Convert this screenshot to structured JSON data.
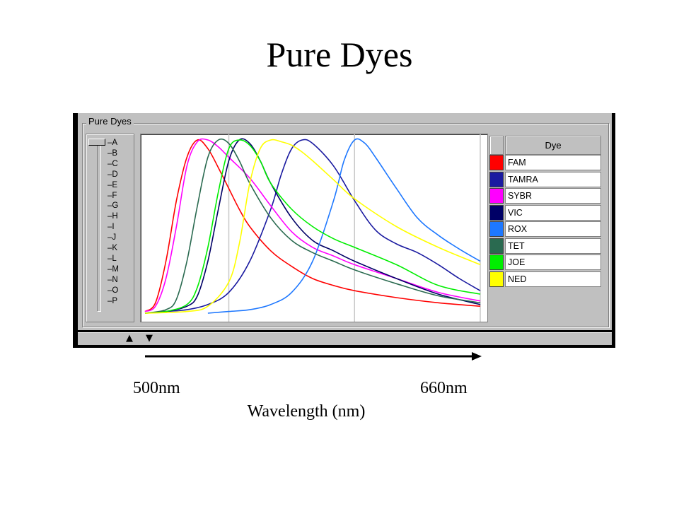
{
  "slide": {
    "title": "Pure Dyes"
  },
  "panel": {
    "group_label": "Pure Dyes",
    "slider_labels": [
      "A",
      "B",
      "C",
      "D",
      "E",
      "F",
      "G",
      "H",
      "I",
      "J",
      "K",
      "L",
      "M",
      "N",
      "O",
      "P"
    ],
    "legend_header": "Dye",
    "arrow_up": "▲",
    "arrow_down": "▼",
    "colors": {
      "window_bg": "#c0c0c0",
      "frame": "#000000"
    }
  },
  "axis": {
    "start_label": "500nm",
    "end_label": "660nm",
    "title": "Wavelength  (nm)"
  },
  "chart_data": {
    "type": "line",
    "title": "",
    "xlabel": "Wavelength  (nm)",
    "ylabel": "",
    "xlim": [
      500,
      660
    ],
    "ylim": [
      0,
      1
    ],
    "grid": "vertical",
    "legend": "right",
    "series": [
      {
        "name": "FAM",
        "color": "#ff0000",
        "x": [
          500,
          505,
          510,
          515,
          520,
          525,
          530,
          535,
          540,
          545,
          550,
          560,
          570,
          580,
          590,
          600,
          620,
          640,
          660
        ],
        "values": [
          0.01,
          0.06,
          0.3,
          0.65,
          0.9,
          1.0,
          0.95,
          0.84,
          0.72,
          0.6,
          0.5,
          0.36,
          0.27,
          0.2,
          0.16,
          0.13,
          0.09,
          0.06,
          0.04
        ]
      },
      {
        "name": "TAMRA",
        "color": "#1a1aa0",
        "x": [
          500,
          510,
          520,
          530,
          540,
          550,
          560,
          565,
          570,
          575,
          580,
          590,
          600,
          610,
          620,
          630,
          640,
          650,
          660
        ],
        "values": [
          0.0,
          0.01,
          0.02,
          0.05,
          0.12,
          0.3,
          0.6,
          0.8,
          0.95,
          1.0,
          0.98,
          0.85,
          0.65,
          0.48,
          0.4,
          0.35,
          0.28,
          0.2,
          0.13
        ]
      },
      {
        "name": "SYBR",
        "color": "#ff00ff",
        "x": [
          500,
          505,
          510,
          515,
          520,
          525,
          530,
          535,
          540,
          550,
          560,
          570,
          580,
          590,
          600,
          620,
          640,
          660
        ],
        "values": [
          0.01,
          0.04,
          0.2,
          0.5,
          0.85,
          0.99,
          1.0,
          0.96,
          0.9,
          0.78,
          0.62,
          0.47,
          0.38,
          0.33,
          0.28,
          0.2,
          0.12,
          0.07
        ]
      },
      {
        "name": "VIC",
        "color": "#000066",
        "x": [
          500,
          510,
          520,
          525,
          530,
          535,
          540,
          545,
          550,
          555,
          560,
          570,
          580,
          590,
          600,
          620,
          640,
          660
        ],
        "values": [
          0.0,
          0.01,
          0.04,
          0.1,
          0.3,
          0.6,
          0.88,
          1.0,
          0.98,
          0.88,
          0.75,
          0.55,
          0.42,
          0.36,
          0.3,
          0.2,
          0.11,
          0.05
        ]
      },
      {
        "name": "ROX",
        "color": "#1e78ff",
        "x": [
          530,
          540,
          550,
          560,
          570,
          580,
          590,
          595,
          600,
          605,
          610,
          620,
          630,
          640,
          650,
          660
        ],
        "values": [
          0.0,
          0.01,
          0.02,
          0.05,
          0.12,
          0.3,
          0.65,
          0.88,
          1.0,
          0.98,
          0.9,
          0.72,
          0.55,
          0.45,
          0.37,
          0.3
        ]
      },
      {
        "name": "TET",
        "color": "#2a6a50",
        "x": [
          500,
          510,
          515,
          520,
          525,
          530,
          535,
          540,
          545,
          550,
          560,
          570,
          580,
          590,
          600,
          620,
          640,
          660
        ],
        "values": [
          0.0,
          0.02,
          0.08,
          0.3,
          0.62,
          0.9,
          1.0,
          0.98,
          0.88,
          0.75,
          0.55,
          0.42,
          0.35,
          0.3,
          0.25,
          0.17,
          0.1,
          0.06
        ]
      },
      {
        "name": "JOE",
        "color": "#00ee00",
        "x": [
          500,
          510,
          520,
          525,
          530,
          535,
          540,
          545,
          550,
          555,
          560,
          570,
          580,
          590,
          600,
          620,
          640,
          660
        ],
        "values": [
          0.0,
          0.01,
          0.05,
          0.15,
          0.38,
          0.7,
          0.95,
          1.0,
          0.97,
          0.88,
          0.75,
          0.6,
          0.5,
          0.43,
          0.38,
          0.28,
          0.16,
          0.11
        ]
      },
      {
        "name": "NED",
        "color": "#ffff00",
        "x": [
          500,
          520,
          530,
          540,
          545,
          550,
          555,
          560,
          565,
          570,
          575,
          580,
          590,
          600,
          620,
          640,
          660
        ],
        "values": [
          0.0,
          0.01,
          0.04,
          0.18,
          0.4,
          0.75,
          0.95,
          1.0,
          0.99,
          0.97,
          0.93,
          0.88,
          0.77,
          0.66,
          0.5,
          0.38,
          0.28
        ]
      }
    ]
  }
}
